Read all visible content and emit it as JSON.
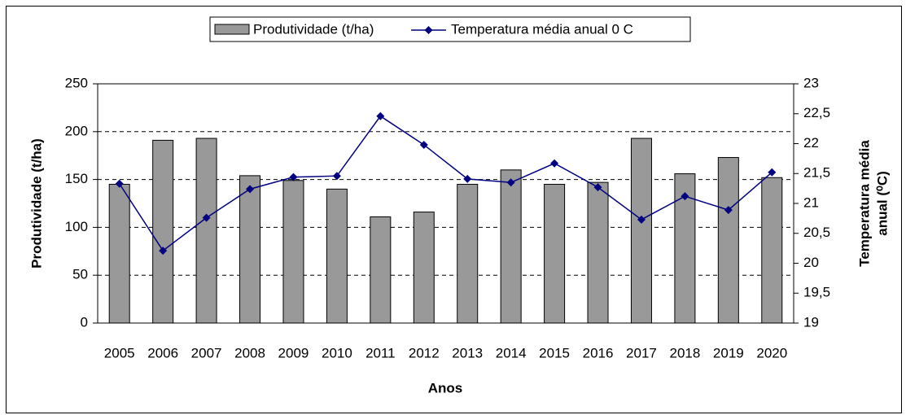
{
  "chart_data": {
    "type": "bar_line",
    "x_label": "Anos",
    "y_label": "Produtividade (t/ha)",
    "y2_label": [
      "Temperatura média",
      "anual (⁰C)"
    ],
    "categories": [
      "2005",
      "2006",
      "2007",
      "2008",
      "2009",
      "2010",
      "2011",
      "2012",
      "2013",
      "2014",
      "2015",
      "2016",
      "2017",
      "2018",
      "2019",
      "2020"
    ],
    "series": [
      {
        "name": "Produtividade (t/ha)",
        "type": "bar",
        "color": "#999999",
        "values": [
          145,
          191,
          193,
          154,
          149,
          140,
          111,
          116,
          145,
          160,
          145,
          147,
          193,
          156,
          173,
          152
        ]
      },
      {
        "name": "Temperatura média anual 0 C",
        "type": "line",
        "axis": "y2",
        "color": "#000080",
        "values": [
          21.33,
          20.21,
          20.76,
          21.24,
          21.44,
          21.46,
          22.46,
          21.98,
          21.41,
          21.35,
          21.67,
          21.27,
          20.73,
          21.12,
          20.89,
          21.52
        ]
      }
    ],
    "ylim": [
      0,
      250
    ],
    "yticks": [
      0,
      50,
      100,
      150,
      200,
      250
    ],
    "y2lim": [
      19,
      23
    ],
    "y2ticks": [
      19,
      {
        "value": 19.5,
        "label": "19,5"
      },
      20,
      {
        "value": 20.5,
        "label": "20,5"
      },
      21,
      {
        "value": 21.5,
        "label": "21,5"
      },
      22,
      {
        "value": 22.5,
        "label": "22,5"
      },
      23
    ],
    "grid": true,
    "legend": "top"
  }
}
